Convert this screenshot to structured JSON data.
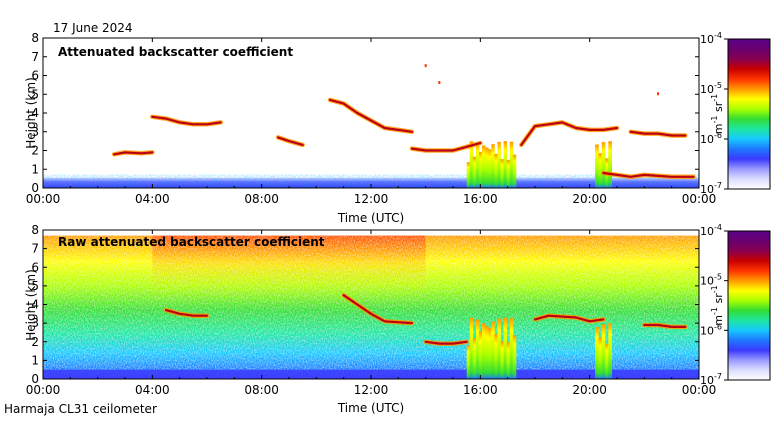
{
  "header": {
    "date": "17 June 2024"
  },
  "footer": {
    "instrument": "Harmaja CL31 ceilometer"
  },
  "colorbar": {
    "colors": [
      "#ffffff",
      "#dcdcff",
      "#9a9aff",
      "#3a3aff",
      "#1e78ff",
      "#16c8ff",
      "#1ee6a0",
      "#33dd33",
      "#aaff00",
      "#ffff00",
      "#ff9900",
      "#ff3300",
      "#c80000",
      "#880050",
      "#6a0070",
      "#5a0088"
    ],
    "ticks": [
      {
        "base": "10",
        "exp": "-4",
        "value": -4
      },
      {
        "base": "10",
        "exp": "-5",
        "value": -5
      },
      {
        "base": "10",
        "exp": "-6",
        "value": -6
      },
      {
        "base": "10",
        "exp": "-7",
        "value": -7
      }
    ],
    "label": {
      "unit1": "m",
      "exp1": "-1",
      "unit2": " sr",
      "exp2": "-1"
    }
  },
  "chart_data": [
    {
      "type": "heatmap",
      "title": "Attenuated backscatter coefficient",
      "xlabel": "Time (UTC)",
      "ylabel": "Height (km)",
      "xlim": [
        0,
        24
      ],
      "ylim": [
        0,
        8
      ],
      "x_ticks": [
        {
          "label": "00:00",
          "value": 0
        },
        {
          "label": "04:00",
          "value": 4
        },
        {
          "label": "08:00",
          "value": 8
        },
        {
          "label": "12:00",
          "value": 12
        },
        {
          "label": "16:00",
          "value": 16
        },
        {
          "label": "20:00",
          "value": 20
        },
        {
          "label": "00:00",
          "value": 24
        }
      ],
      "y_ticks": [
        {
          "label": "0",
          "value": 0
        },
        {
          "label": "1",
          "value": 1
        },
        {
          "label": "2",
          "value": 2
        },
        {
          "label": "3",
          "value": 3
        },
        {
          "label": "4",
          "value": 4
        },
        {
          "label": "5",
          "value": 5
        },
        {
          "label": "6",
          "value": 6
        },
        {
          "label": "7",
          "value": 7
        },
        {
          "label": "8",
          "value": 8
        }
      ],
      "colorbar_range": [
        -7,
        -4
      ],
      "layers": [
        {
          "t": [
            4.0,
            4.5,
            5.0,
            5.5,
            6.0,
            6.5
          ],
          "h": [
            3.8,
            3.7,
            3.5,
            3.4,
            3.4,
            3.5
          ]
        },
        {
          "t": [
            2.6,
            3.0,
            3.6,
            4.0
          ],
          "h": [
            1.8,
            1.9,
            1.85,
            1.9
          ]
        },
        {
          "t": [
            8.6,
            9.0,
            9.5
          ],
          "h": [
            2.7,
            2.5,
            2.3
          ]
        },
        {
          "t": [
            10.5,
            11.0,
            11.5,
            12.0,
            12.5,
            13.0,
            13.5
          ],
          "h": [
            4.7,
            4.5,
            4.0,
            3.6,
            3.2,
            3.1,
            3.0
          ]
        },
        {
          "t": [
            13.5,
            14.0,
            14.5,
            15.0,
            15.5,
            16.0
          ],
          "h": [
            2.1,
            2.0,
            2.0,
            2.0,
            2.2,
            2.4
          ]
        },
        {
          "t": [
            17.5,
            18.0,
            18.5,
            19.0,
            19.5,
            20.0,
            20.5,
            21.0
          ],
          "h": [
            2.3,
            3.3,
            3.4,
            3.5,
            3.2,
            3.1,
            3.1,
            3.2
          ]
        },
        {
          "t": [
            21.5,
            22.0,
            22.5,
            23.0,
            23.5
          ],
          "h": [
            3.0,
            2.9,
            2.9,
            2.8,
            2.8
          ]
        },
        {
          "t": [
            20.5,
            21.0,
            21.5,
            22.0,
            23.0,
            23.8
          ],
          "h": [
            0.8,
            0.7,
            0.6,
            0.7,
            0.6,
            0.6
          ]
        }
      ],
      "precip": [
        [
          15.5,
          17.3,
          2.5
        ],
        [
          20.2,
          20.8,
          2.5
        ]
      ],
      "isolated_points": [
        {
          "t": 14.0,
          "h": 6.5
        },
        {
          "t": 14.5,
          "h": 5.6
        },
        {
          "t": 22.5,
          "h": 5.0
        }
      ]
    },
    {
      "type": "heatmap",
      "title": "Raw attenuated backscatter coefficient",
      "xlabel": "Time (UTC)",
      "ylabel": "Height (km)",
      "xlim": [
        0,
        24
      ],
      "ylim": [
        0,
        8
      ],
      "x_ticks": [
        {
          "label": "00:00",
          "value": 0
        },
        {
          "label": "04:00",
          "value": 4
        },
        {
          "label": "08:00",
          "value": 8
        },
        {
          "label": "12:00",
          "value": 12
        },
        {
          "label": "16:00",
          "value": 16
        },
        {
          "label": "20:00",
          "value": 20
        },
        {
          "label": "00:00",
          "value": 24
        }
      ],
      "y_ticks": [
        {
          "label": "0",
          "value": 0
        },
        {
          "label": "1",
          "value": 1
        },
        {
          "label": "2",
          "value": 2
        },
        {
          "label": "3",
          "value": 3
        },
        {
          "label": "4",
          "value": 4
        },
        {
          "label": "5",
          "value": 5
        },
        {
          "label": "6",
          "value": 6
        },
        {
          "label": "7",
          "value": 7
        },
        {
          "label": "8",
          "value": 8
        }
      ],
      "colorbar_range": [
        -7,
        -4
      ],
      "noise_top": 7.7,
      "layers": [
        {
          "t": [
            4.5,
            5.0,
            5.5,
            6.0
          ],
          "h": [
            3.7,
            3.5,
            3.4,
            3.4
          ]
        },
        {
          "t": [
            11.0,
            11.5,
            12.0,
            12.5,
            13.5
          ],
          "h": [
            4.5,
            4.0,
            3.5,
            3.1,
            3.0
          ]
        },
        {
          "t": [
            14.0,
            14.5,
            15.0,
            15.5
          ],
          "h": [
            2.0,
            1.9,
            1.9,
            2.0
          ]
        },
        {
          "t": [
            18.0,
            18.5,
            19.5,
            20.0,
            20.5
          ],
          "h": [
            3.2,
            3.4,
            3.3,
            3.1,
            3.2
          ]
        },
        {
          "t": [
            22.0,
            22.5,
            23.0,
            23.5
          ],
          "h": [
            2.9,
            2.9,
            2.8,
            2.8
          ]
        }
      ],
      "precip": [
        [
          15.5,
          17.3,
          3.3
        ],
        [
          20.2,
          20.8,
          3.0
        ]
      ],
      "isolated_points": []
    }
  ]
}
